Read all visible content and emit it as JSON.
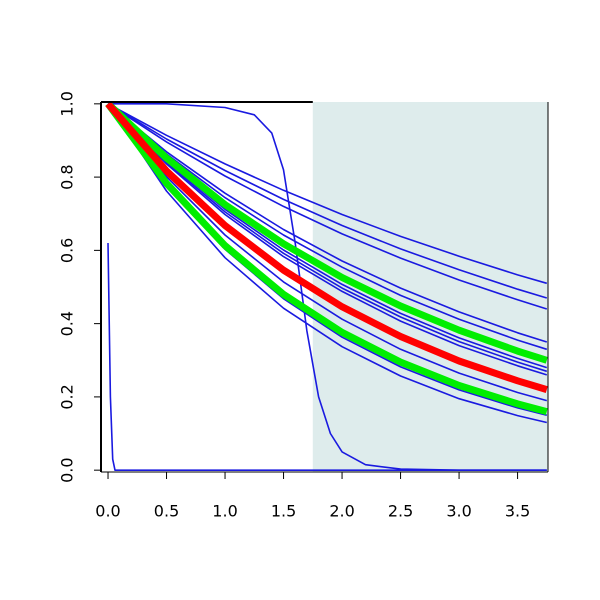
{
  "chart_data": {
    "type": "line",
    "xlim": [
      -0.06,
      3.76
    ],
    "ylim": [
      -0.005,
      1.005
    ],
    "xticks": [
      {
        "value": 0,
        "label": "0.0"
      },
      0.5,
      {
        "value": 1,
        "label": "1.0"
      },
      1.5,
      {
        "value": 2,
        "label": "2.0"
      },
      2.5,
      {
        "value": 3,
        "label": "3.0"
      },
      3.5
    ],
    "yticks": [
      {
        "value": 0,
        "label": "0.0"
      },
      0.2,
      0.4,
      0.6,
      0.8,
      {
        "value": 1,
        "label": "1.0"
      }
    ],
    "shade_from": 1.75,
    "shade_color": "#deecec",
    "series": [
      {
        "color": "#1a1ae0",
        "width": 1.6,
        "x": [
          0,
          0.5,
          1,
          1.5,
          2,
          2.5,
          3,
          3.5,
          3.75
        ],
        "values": [
          1,
          0.914,
          0.836,
          0.764,
          0.698,
          0.638,
          0.584,
          0.533,
          0.51
        ]
      },
      {
        "color": "#1a1ae0",
        "width": 1.6,
        "x": [
          0,
          0.5,
          1,
          1.5,
          2,
          2.5,
          3,
          3.5,
          3.75
        ],
        "values": [
          1,
          0.904,
          0.818,
          0.739,
          0.668,
          0.604,
          0.547,
          0.494,
          0.47
        ]
      },
      {
        "color": "#1a1ae0",
        "width": 1.6,
        "x": [
          0,
          0.5,
          1,
          1.5,
          2,
          2.5,
          3,
          3.5,
          3.75
        ],
        "values": [
          1,
          0.896,
          0.803,
          0.72,
          0.645,
          0.579,
          0.519,
          0.465,
          0.44
        ]
      },
      {
        "color": "#1a1ae0",
        "width": 1.6,
        "x": [
          0,
          0.5,
          1,
          1.5,
          2,
          2.5,
          3,
          3.5,
          3.75
        ],
        "values": [
          1,
          0.869,
          0.756,
          0.657,
          0.571,
          0.497,
          0.432,
          0.375,
          0.35
        ]
      },
      {
        "color": "#1a1ae0",
        "width": 1.6,
        "x": [
          0,
          0.5,
          1,
          1.5,
          2,
          2.5,
          3,
          3.5,
          3.75
        ],
        "values": [
          1,
          0.863,
          0.744,
          0.642,
          0.554,
          0.477,
          0.412,
          0.355,
          0.33
        ]
      },
      {
        "color": "#1a1ae0",
        "width": 1.6,
        "x": [
          0,
          0.5,
          1,
          1.5,
          2,
          2.5,
          3,
          3.5,
          3.75
        ],
        "values": [
          1,
          0.844,
          0.712,
          0.601,
          0.507,
          0.428,
          0.361,
          0.305,
          0.28
        ]
      },
      {
        "color": "#1a1ae0",
        "width": 1.6,
        "x": [
          0,
          0.5,
          1,
          1.5,
          2,
          2.5,
          3,
          3.5,
          3.75
        ],
        "values": [
          1,
          0.84,
          0.705,
          0.592,
          0.497,
          0.418,
          0.351,
          0.295,
          0.27
        ]
      },
      {
        "color": "#1a1ae0",
        "width": 1.6,
        "x": [
          0,
          0.5,
          1,
          1.5,
          2,
          2.5,
          3,
          3.5,
          3.75
        ],
        "values": [
          1,
          0.836,
          0.698,
          0.583,
          0.488,
          0.407,
          0.34,
          0.285,
          0.26
        ]
      },
      {
        "color": "#1a1ae0",
        "width": 1.6,
        "x": [
          0,
          0.5,
          1,
          1.5,
          2,
          2.5,
          3,
          3.5,
          3.75
        ],
        "values": [
          1,
          0.801,
          0.642,
          0.514,
          0.412,
          0.33,
          0.265,
          0.212,
          0.19
        ]
      },
      {
        "color": "#1a1ae0",
        "width": 1.6,
        "x": [
          0,
          0.5,
          1,
          1.5,
          2,
          2.5,
          3,
          3.5,
          3.75
        ],
        "values": [
          1,
          0.776,
          0.603,
          0.468,
          0.363,
          0.282,
          0.219,
          0.17,
          0.15
        ]
      },
      {
        "color": "#1a1ae0",
        "width": 1.6,
        "x": [
          0,
          0.5,
          1,
          1.5,
          2,
          2.5,
          3,
          3.5,
          3.75
        ],
        "values": [
          1,
          0.762,
          0.58,
          0.442,
          0.337,
          0.257,
          0.195,
          0.149,
          0.13
        ]
      },
      {
        "color": "#1a1ae0",
        "width": 1.6,
        "x": [
          0,
          0.5,
          1,
          1.25,
          1.4,
          1.5,
          1.6,
          1.7,
          1.8,
          1.9,
          2,
          2.2,
          2.5,
          3,
          3.75
        ],
        "values": [
          1,
          1,
          0.99,
          0.97,
          0.92,
          0.82,
          0.62,
          0.38,
          0.2,
          0.1,
          0.05,
          0.015,
          0.003,
          0,
          0
        ]
      },
      {
        "color": "#1a1ae0",
        "width": 1.6,
        "x": [
          0,
          0.02,
          0.04,
          0.06,
          3.75
        ],
        "values": [
          0.62,
          0.2,
          0.03,
          0,
          0
        ]
      },
      {
        "color": "#00ee00",
        "width": 7,
        "x": [
          0,
          0.5,
          1,
          1.5,
          2,
          2.5,
          3,
          3.5,
          3.75
        ],
        "values": [
          1,
          0.852,
          0.725,
          0.618,
          0.526,
          0.448,
          0.382,
          0.325,
          0.3
        ]
      },
      {
        "color": "#00ee00",
        "width": 7,
        "x": [
          0,
          0.5,
          1,
          1.5,
          2,
          2.5,
          3,
          3.5,
          3.75
        ],
        "values": [
          1,
          0.783,
          0.613,
          0.48,
          0.376,
          0.295,
          0.231,
          0.181,
          0.16
        ]
      },
      {
        "color": "#ff0000",
        "width": 7,
        "x": [
          0,
          0.5,
          1,
          1.5,
          2,
          2.5,
          3,
          3.5,
          3.75
        ],
        "values": [
          1,
          0.817,
          0.668,
          0.546,
          0.446,
          0.365,
          0.298,
          0.244,
          0.22
        ]
      }
    ]
  }
}
